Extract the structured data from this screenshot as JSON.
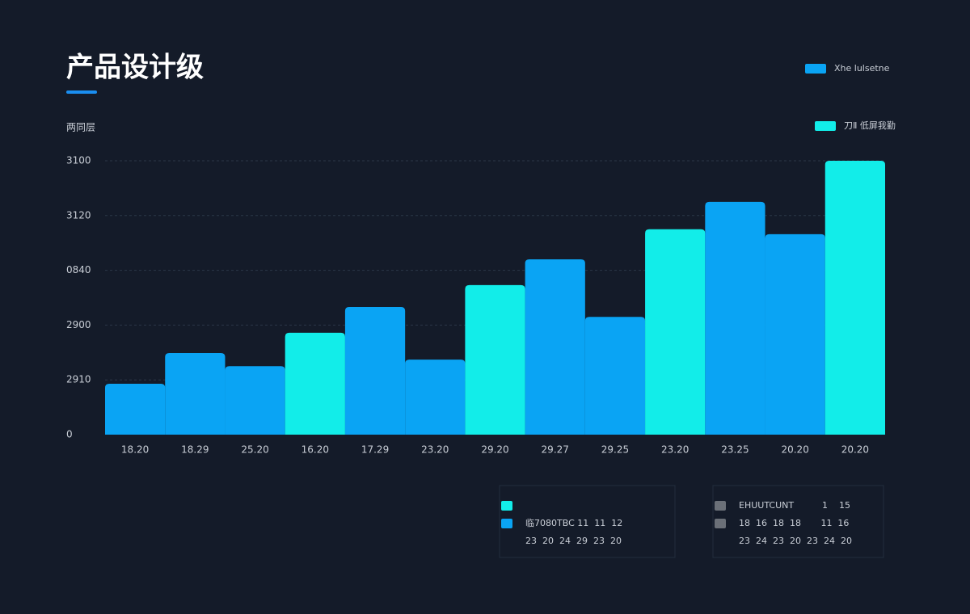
{
  "chart_data": {
    "type": "bar",
    "title": "产品设计级",
    "y_label": "两同层",
    "categories": [
      "18.20",
      "18.29",
      "25.20",
      "16.20",
      "17.29",
      "23.20",
      "29.20",
      "29.27",
      "29.25",
      "23.20",
      "23.25",
      "20.20",
      "20.20"
    ],
    "values": [
      0.93,
      1.49,
      1.25,
      1.86,
      2.33,
      1.37,
      2.73,
      3.2,
      2.15,
      3.75,
      4.25,
      3.66,
      5.0
    ],
    "colors": [
      "#0aa4f4",
      "#0aa4f4",
      "#0aa4f4",
      "#12ede9",
      "#0aa4f4",
      "#0aa4f4",
      "#12ede9",
      "#0aa4f4",
      "#0aa4f4",
      "#12ede9",
      "#0aa4f4",
      "#0aa4f4",
      "#12ede9"
    ],
    "ylim": [
      0,
      5
    ],
    "yticks": [
      0,
      {
        "value": 1,
        "label": "2910"
      },
      {
        "value": 2,
        "label": "2900"
      },
      {
        "value": 3,
        "label": "0840"
      },
      {
        "value": 4,
        "label": "3120"
      },
      {
        "value": 5,
        "label": "3100"
      }
    ],
    "grid": true,
    "legend": [
      {
        "name": "Xhe lulsetne",
        "color": "#0aa4f4"
      },
      {
        "name": "刀Ⅱ 低屏我勤",
        "color": "#12ede9"
      }
    ]
  },
  "panels": [
    {
      "rows": [
        {
          "color": "#12ede9",
          "text": ""
        },
        {
          "color": "#0aa4f4",
          "text": "临7080TBC 11  11  12"
        },
        {
          "color": null,
          "text": "23  20  24  29  23  20"
        }
      ]
    },
    {
      "rows": [
        {
          "color": "#6b7078",
          "text": "EHUUTCUNT          1    15"
        },
        {
          "color": "#6b7078",
          "text": "18  16  18  18       11  16"
        },
        {
          "color": null,
          "text": "23  24  23  20  23  24  20"
        }
      ]
    }
  ]
}
